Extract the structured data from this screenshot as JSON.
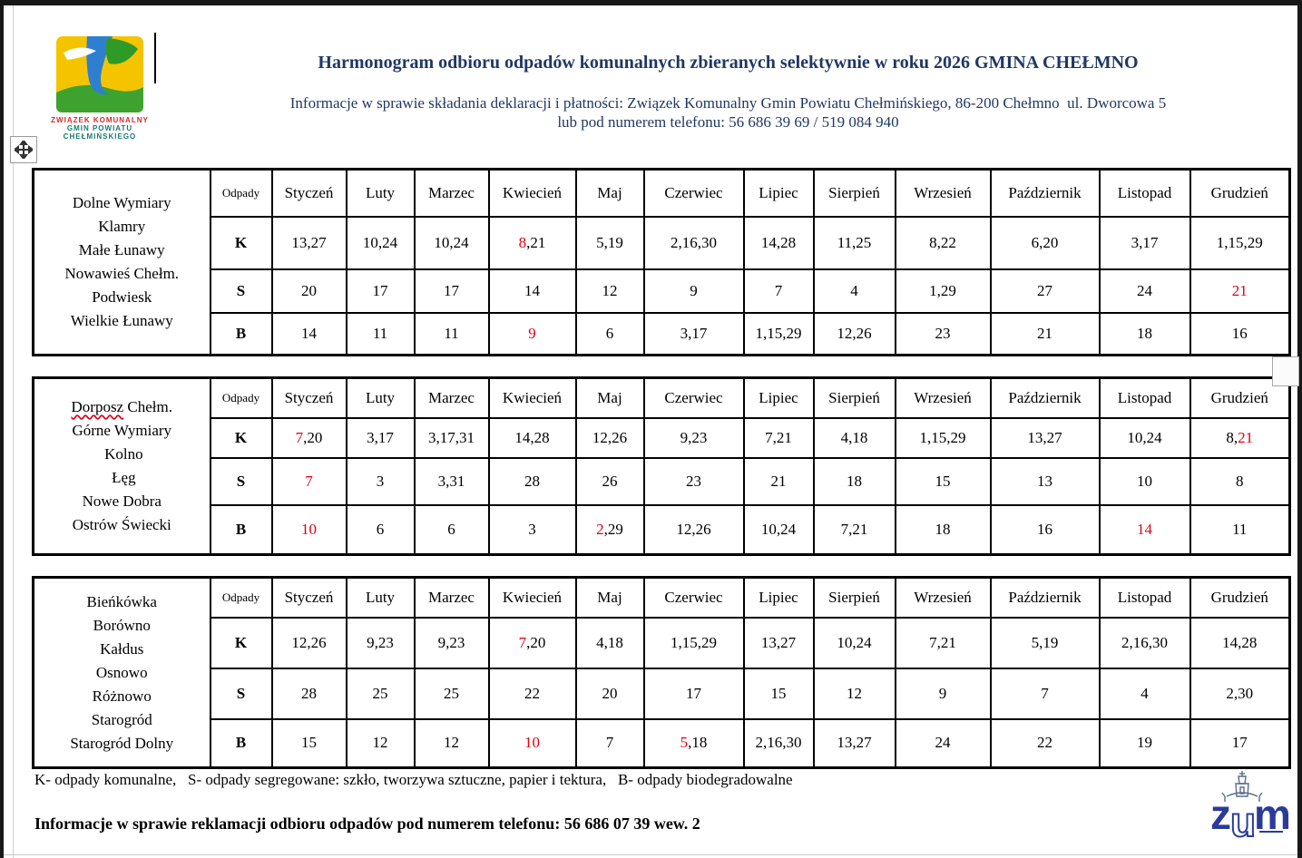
{
  "header": {
    "logo": {
      "line1": "ZWIĄZEK KOMUNALNY",
      "line2": "GMIN POWIATU",
      "line3": "CHEŁMIŃSKIEGO"
    },
    "title": "Harmonogram odbioru odpadów komunalnych zbieranych selektywnie w roku 2026 GMINA CHEŁMNO",
    "subtitle_line1": "Informacje w sprawie składania deklaracji i płatności: Związek Komunalny Gmin Powiatu Chełmińskiego, 86-200 Chełmno  ul. Dworcowa 5",
    "subtitle_line2": "lub pod numerem telefonu: 56 686 39 69 / 519 084 940"
  },
  "odpady_label": "Odpady",
  "months": [
    "Styczeń",
    "Luty",
    "Marzec",
    "Kwiecień",
    "Maj",
    "Czerwiec",
    "Lipiec",
    "Sierpień",
    "Wrzesień",
    "Październik",
    "Listopad",
    "Grudzień"
  ],
  "tables": [
    {
      "villages": [
        {
          "text": "Dolne Wymiary"
        },
        {
          "text": "Klamry"
        },
        {
          "text": "Małe Łunawy"
        },
        {
          "text": "Nowawieś Chełm."
        },
        {
          "text": "Podwiesk"
        },
        {
          "text": "Wielkie Łunawy"
        }
      ],
      "rows": [
        {
          "label": "K",
          "cells": [
            [
              {
                "t": "13,27"
              }
            ],
            [
              {
                "t": "10,24"
              }
            ],
            [
              {
                "t": "10,24"
              }
            ],
            [
              {
                "t": "8",
                "red": true
              },
              {
                "t": ",21"
              }
            ],
            [
              {
                "t": "5,19"
              }
            ],
            [
              {
                "t": "2,16,30"
              }
            ],
            [
              {
                "t": "14,28"
              }
            ],
            [
              {
                "t": "11,25"
              }
            ],
            [
              {
                "t": "8,22"
              }
            ],
            [
              {
                "t": "6,20"
              }
            ],
            [
              {
                "t": "3,17"
              }
            ],
            [
              {
                "t": "1,15,29"
              }
            ]
          ]
        },
        {
          "label": "S",
          "cells": [
            [
              {
                "t": "20"
              }
            ],
            [
              {
                "t": "17"
              }
            ],
            [
              {
                "t": "17"
              }
            ],
            [
              {
                "t": "14"
              }
            ],
            [
              {
                "t": "12"
              }
            ],
            [
              {
                "t": "9"
              }
            ],
            [
              {
                "t": "7"
              }
            ],
            [
              {
                "t": "4"
              }
            ],
            [
              {
                "t": "1,29"
              }
            ],
            [
              {
                "t": "27"
              }
            ],
            [
              {
                "t": "24"
              }
            ],
            [
              {
                "t": "21",
                "red": true
              }
            ]
          ]
        },
        {
          "label": "B",
          "cells": [
            [
              {
                "t": "14"
              }
            ],
            [
              {
                "t": "11"
              }
            ],
            [
              {
                "t": "11"
              }
            ],
            [
              {
                "t": "9",
                "red": true
              }
            ],
            [
              {
                "t": "6"
              }
            ],
            [
              {
                "t": "3,17"
              }
            ],
            [
              {
                "t": "1,15,29"
              }
            ],
            [
              {
                "t": "12,26"
              }
            ],
            [
              {
                "t": "23"
              }
            ],
            [
              {
                "t": "21"
              }
            ],
            [
              {
                "t": "18"
              }
            ],
            [
              {
                "t": "16"
              }
            ]
          ]
        }
      ]
    },
    {
      "villages": [
        {
          "text": "Dorposz Chełm.",
          "squiggle": "Dorposz"
        },
        {
          "text": "Górne Wymiary"
        },
        {
          "text": " Kolno"
        },
        {
          "text": " Łęg"
        },
        {
          "text": "Nowe Dobra"
        },
        {
          "text": "Ostrów Świecki"
        }
      ],
      "rows": [
        {
          "label": "K",
          "cells": [
            [
              {
                "t": "7",
                "red": true
              },
              {
                "t": ",20"
              }
            ],
            [
              {
                "t": "3,17"
              }
            ],
            [
              {
                "t": "3,17,31"
              }
            ],
            [
              {
                "t": "14,28"
              }
            ],
            [
              {
                "t": "12,26"
              }
            ],
            [
              {
                "t": "9,23"
              }
            ],
            [
              {
                "t": "7,21"
              }
            ],
            [
              {
                "t": "4,18"
              }
            ],
            [
              {
                "t": "1,15,29"
              }
            ],
            [
              {
                "t": "13,27"
              }
            ],
            [
              {
                "t": "10,24"
              }
            ],
            [
              {
                "t": "8,"
              },
              {
                "t": "21",
                "red": true
              }
            ]
          ]
        },
        {
          "label": "S",
          "cells": [
            [
              {
                "t": "7",
                "red": true
              }
            ],
            [
              {
                "t": "3"
              }
            ],
            [
              {
                "t": "3,31"
              }
            ],
            [
              {
                "t": "28"
              }
            ],
            [
              {
                "t": "26"
              }
            ],
            [
              {
                "t": "23"
              }
            ],
            [
              {
                "t": "21"
              }
            ],
            [
              {
                "t": "18"
              }
            ],
            [
              {
                "t": "15"
              }
            ],
            [
              {
                "t": "13"
              }
            ],
            [
              {
                "t": "10"
              }
            ],
            [
              {
                "t": "8"
              }
            ]
          ]
        },
        {
          "label": "B",
          "cells": [
            [
              {
                "t": "10",
                "red": true
              }
            ],
            [
              {
                "t": "6"
              }
            ],
            [
              {
                "t": "6"
              }
            ],
            [
              {
                "t": "3"
              }
            ],
            [
              {
                "t": "2",
                "red": true
              },
              {
                "t": ",29"
              }
            ],
            [
              {
                "t": "12,26"
              }
            ],
            [
              {
                "t": "10,24"
              }
            ],
            [
              {
                "t": "7,21"
              }
            ],
            [
              {
                "t": "18"
              }
            ],
            [
              {
                "t": "16"
              }
            ],
            [
              {
                "t": "14",
                "red": true
              }
            ],
            [
              {
                "t": "11"
              }
            ]
          ]
        }
      ]
    },
    {
      "villages": [
        {
          "text": "Bieńkówka"
        },
        {
          "text": "Borówno"
        },
        {
          "text": "Kałdus"
        },
        {
          "text": "Osnowo"
        },
        {
          "text": "Różnowo"
        },
        {
          "text": "Starogród"
        },
        {
          "text": "Starogród Dolny"
        }
      ],
      "rows": [
        {
          "label": "K",
          "cells": [
            [
              {
                "t": "12,26"
              }
            ],
            [
              {
                "t": "9,23"
              }
            ],
            [
              {
                "t": "9,23"
              }
            ],
            [
              {
                "t": "7",
                "red": true
              },
              {
                "t": ",20"
              }
            ],
            [
              {
                "t": "4,18"
              }
            ],
            [
              {
                "t": "1,15,29"
              }
            ],
            [
              {
                "t": "13,27"
              }
            ],
            [
              {
                "t": "10,24"
              }
            ],
            [
              {
                "t": "7,21"
              }
            ],
            [
              {
                "t": "5,19"
              }
            ],
            [
              {
                "t": "2,16,30"
              }
            ],
            [
              {
                "t": "14,28"
              }
            ]
          ]
        },
        {
          "label": "S",
          "cells": [
            [
              {
                "t": "28"
              }
            ],
            [
              {
                "t": "25"
              }
            ],
            [
              {
                "t": "25"
              }
            ],
            [
              {
                "t": "22"
              }
            ],
            [
              {
                "t": "20"
              }
            ],
            [
              {
                "t": "17"
              }
            ],
            [
              {
                "t": "15"
              }
            ],
            [
              {
                "t": "12"
              }
            ],
            [
              {
                "t": "9"
              }
            ],
            [
              {
                "t": "7"
              }
            ],
            [
              {
                "t": "4"
              }
            ],
            [
              {
                "t": "2,30"
              }
            ]
          ]
        },
        {
          "label": "B",
          "cells": [
            [
              {
                "t": "15"
              }
            ],
            [
              {
                "t": "12"
              }
            ],
            [
              {
                "t": "12"
              }
            ],
            [
              {
                "t": "10",
                "red": true
              }
            ],
            [
              {
                "t": "7"
              }
            ],
            [
              {
                "t": "5",
                "red": true
              },
              {
                "t": ",18"
              }
            ],
            [
              {
                "t": "2,16,30"
              }
            ],
            [
              {
                "t": "13,27"
              }
            ],
            [
              {
                "t": "24"
              }
            ],
            [
              {
                "t": "22"
              }
            ],
            [
              {
                "t": "19"
              }
            ],
            [
              {
                "t": "17"
              }
            ]
          ]
        }
      ]
    }
  ],
  "legend": "K- odpady komunalne,   S- odpady segregowane: szkło, tworzywa sztuczne, papier i tektura,   B- odpady biodegradowalne",
  "contact_info": "Informacje w sprawie reklamacji odbioru odpadów pod numerem telefonu: 56 686 07 39 wew. 2",
  "zum_logo_text": "zum",
  "colors": {
    "title_navy": "#1f3864",
    "highlight_red": "#e00013",
    "logo_red": "#d42a2a",
    "logo_teal": "#177a70",
    "zum_blue": "#2a3b9b"
  }
}
